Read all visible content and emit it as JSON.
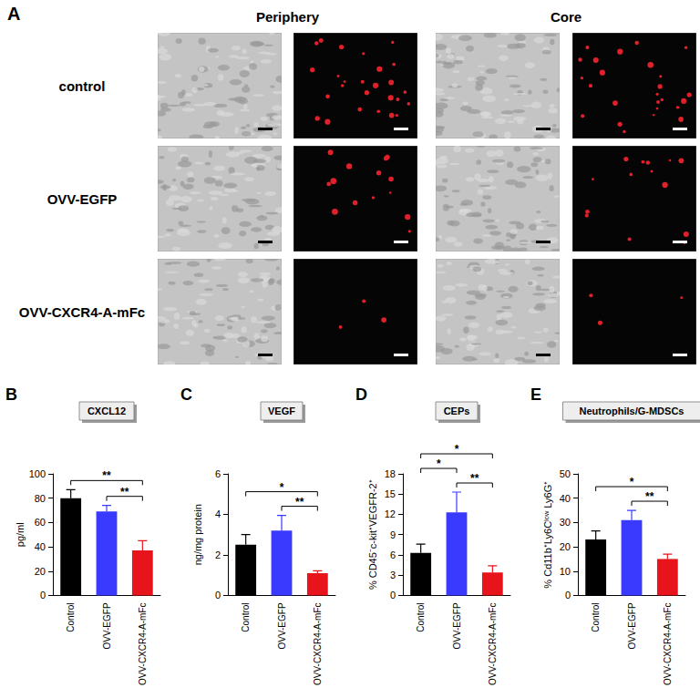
{
  "panel_a": {
    "label": "A",
    "columns": [
      "Periphery",
      "Core"
    ],
    "rows": [
      "control",
      "OVV-EGFP",
      "OVV-CXCR4-A-mFc"
    ]
  },
  "chart_data": [
    {
      "type": "bar",
      "panel": "B",
      "title": "CXCL12",
      "y_label": "pg/ml",
      "categories": [
        "Control",
        "OVV-EGFP",
        "OVV-CXCR4-A-mFc"
      ],
      "values": [
        80,
        69,
        37
      ],
      "errors": [
        7,
        5,
        8
      ],
      "colors": [
        "#000000",
        "#3a3aff",
        "#e8141c"
      ],
      "ylim": [
        0,
        100
      ],
      "yticks": [
        0,
        20,
        40,
        60,
        80,
        100
      ],
      "grid": false,
      "annotations": [
        {
          "from": "OVV-EGFP",
          "to": "OVV-CXCR4-A-mFc",
          "text": "**"
        },
        {
          "from": "Control",
          "to": "OVV-CXCR4-A-mFc",
          "text": "**"
        }
      ]
    },
    {
      "type": "bar",
      "panel": "C",
      "title": "VEGF",
      "y_label": "ng/mg protein",
      "categories": [
        "Control",
        "OVV-EGFP",
        "OVV-CXCR4-A-mFc"
      ],
      "values": [
        2.5,
        3.2,
        1.1
      ],
      "errors": [
        0.5,
        0.75,
        0.12
      ],
      "colors": [
        "#000000",
        "#3a3aff",
        "#e8141c"
      ],
      "ylim": [
        0,
        6
      ],
      "yticks": [
        0,
        2,
        4,
        6
      ],
      "grid": false,
      "annotations": [
        {
          "from": "OVV-EGFP",
          "to": "OVV-CXCR4-A-mFc",
          "text": "**"
        },
        {
          "from": "Control",
          "to": "OVV-CXCR4-A-mFc",
          "text": "*"
        }
      ]
    },
    {
      "type": "bar",
      "panel": "D",
      "title": "CEPs",
      "y_label": "% CD45⁻c-kit⁺VEGFR-2⁺",
      "categories": [
        "Control",
        "OVV-EGFP",
        "OVV-CXCR4-A-mFc"
      ],
      "values": [
        6.3,
        12.3,
        3.4
      ],
      "errors": [
        1.3,
        3,
        1
      ],
      "colors": [
        "#000000",
        "#3a3aff",
        "#e8141c"
      ],
      "ylim": [
        0,
        18
      ],
      "yticks": [
        0,
        3,
        6,
        9,
        12,
        15,
        18
      ],
      "grid": false,
      "annotations": [
        {
          "from": "OVV-EGFP",
          "to": "OVV-CXCR4-A-mFc",
          "text": "**"
        },
        {
          "from": "Control",
          "to": "OVV-EGFP",
          "text": "*"
        },
        {
          "from": "Control",
          "to": "OVV-CXCR4-A-mFc",
          "text": "*"
        }
      ]
    },
    {
      "type": "bar",
      "panel": "E",
      "title": "Neutrophils/G-MDSCs",
      "y_label": "% Cd11b⁺Ly6Cˡᵒʷ Ly6G⁺",
      "categories": [
        "Control",
        "OVV-EGFP",
        "OVV-CXCR4-A-mFc"
      ],
      "values": [
        23,
        31,
        15
      ],
      "errors": [
        3.5,
        4,
        2
      ],
      "colors": [
        "#000000",
        "#3a3aff",
        "#e8141c"
      ],
      "ylim": [
        0,
        50
      ],
      "yticks": [
        0,
        10,
        20,
        30,
        40,
        50
      ],
      "grid": false,
      "annotations": [
        {
          "from": "OVV-EGFP",
          "to": "OVV-CXCR4-A-mFc",
          "text": "**"
        },
        {
          "from": "Control",
          "to": "OVV-CXCR4-A-mFc",
          "text": "*"
        }
      ]
    }
  ]
}
